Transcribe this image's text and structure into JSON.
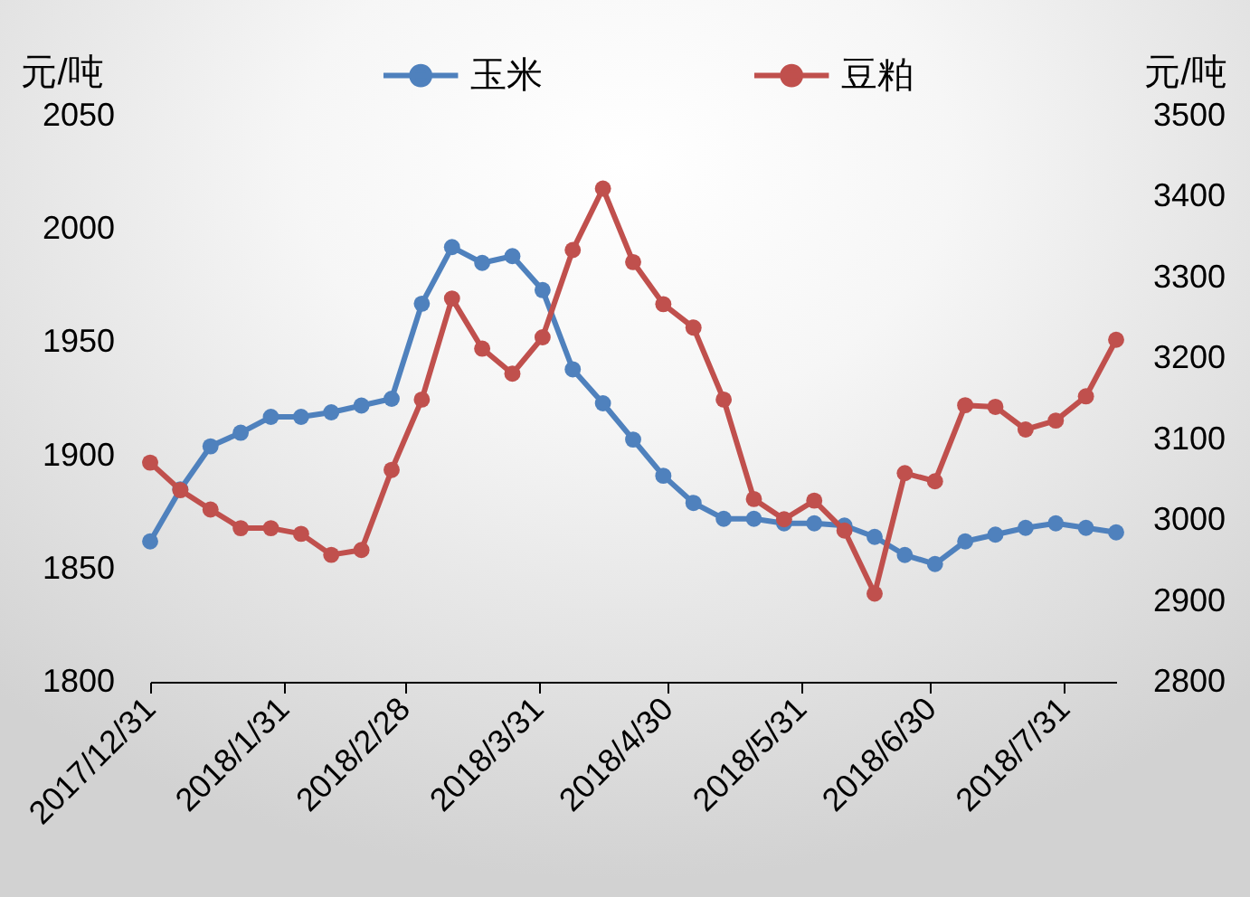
{
  "chart_data": {
    "type": "line",
    "ylabel": "元/吨",
    "y2label": "元/吨",
    "x": [
      "2017-12-31",
      "2018-01-07",
      "2018-01-14",
      "2018-01-21",
      "2018-01-28",
      "2018-02-04",
      "2018-02-11",
      "2018-02-18",
      "2018-02-25",
      "2018-03-04",
      "2018-03-11",
      "2018-03-18",
      "2018-03-25",
      "2018-04-01",
      "2018-04-08",
      "2018-04-15",
      "2018-04-22",
      "2018-04-29",
      "2018-05-06",
      "2018-05-13",
      "2018-05-20",
      "2018-05-27",
      "2018-06-03",
      "2018-06-10",
      "2018-06-17",
      "2018-06-24",
      "2018-07-01",
      "2018-07-08",
      "2018-07-15",
      "2018-07-22",
      "2018-07-29",
      "2018-08-05",
      "2018-08-12"
    ],
    "series": [
      {
        "name": "玉米",
        "color": "#4f81bd",
        "values": [
          1862,
          1885,
          1904,
          1910,
          1917,
          1917,
          1919,
          1922,
          1925,
          1967,
          1992,
          1985,
          1988,
          1973,
          1938,
          1923,
          1907,
          1891,
          1879,
          1872,
          1872,
          1870,
          1870,
          1869,
          1864,
          1856,
          1852,
          1862,
          1865,
          1868,
          1870,
          1868,
          1866
        ]
      },
      {
        "name": "豆粕",
        "color": "#c0504d",
        "axis": "y2",
        "values": [
          3071,
          3037,
          3013,
          2990,
          2990,
          2983,
          2957,
          2963,
          3062,
          3149,
          3274,
          3212,
          3181,
          3226,
          3334,
          3410,
          3319,
          3267,
          3238,
          3149,
          3026,
          3001,
          3024,
          2987,
          2909,
          3058,
          3048,
          3142,
          3140,
          3112,
          3123,
          3153,
          3223
        ]
      }
    ],
    "xlim": [
      "2017-12-31",
      "2018-08-12"
    ],
    "xticks": [
      {
        "value": "2017-12-31",
        "label": "2017/12/31"
      },
      {
        "value": "2018-01-31",
        "label": "2018/1/31"
      },
      {
        "value": "2018-02-28",
        "label": "2018/2/28"
      },
      {
        "value": "2018-03-31",
        "label": "2018/3/31"
      },
      {
        "value": "2018-04-30",
        "label": "2018/4/30"
      },
      {
        "value": "2018-05-31",
        "label": "2018/5/31"
      },
      {
        "value": "2018-06-30",
        "label": "2018/6/30"
      },
      {
        "value": "2018-07-31",
        "label": "2018/7/31"
      }
    ],
    "ylim": [
      1800,
      2050
    ],
    "yticks": [
      1800,
      1850,
      1900,
      1950,
      2000,
      2050
    ],
    "y2lim": [
      2800,
      3500
    ],
    "y2ticks": [
      2800,
      2900,
      3000,
      3100,
      3200,
      3300,
      3400,
      3500
    ],
    "legend": "top",
    "marker": "circle",
    "line_style": "solid",
    "grid": false
  }
}
